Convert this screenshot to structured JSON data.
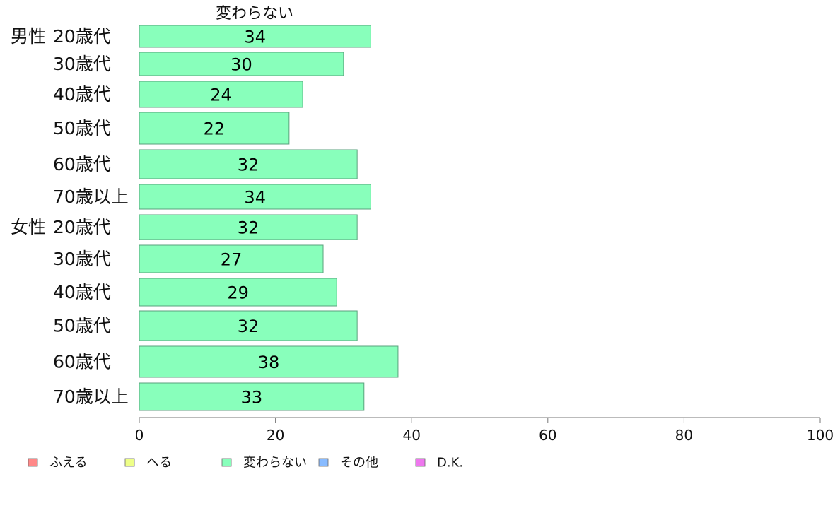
{
  "chart_data": {
    "type": "bar",
    "orientation": "horizontal",
    "series_header": "変わらない",
    "groups": [
      {
        "label": "男性",
        "rows": [
          "20歳代",
          "30歳代",
          "40歳代",
          "50歳代",
          "60歳代",
          "70歳以上"
        ]
      },
      {
        "label": "女性",
        "rows": [
          "20歳代",
          "30歳代",
          "40歳代",
          "50歳代",
          "60歳代",
          "70歳以上"
        ]
      }
    ],
    "series": [
      {
        "name": "変わらない",
        "color": "#88ffbb",
        "values": [
          34,
          30,
          24,
          22,
          32,
          34,
          32,
          27,
          29,
          32,
          38,
          33
        ]
      }
    ],
    "xlim": [
      0,
      100
    ],
    "xticks": [
      0,
      20,
      40,
      60,
      80,
      100
    ],
    "grid": false,
    "legend": {
      "placement": "bottom-left",
      "items": [
        {
          "label": "ふえる",
          "color": "#ff8888"
        },
        {
          "label": "へる",
          "color": "#eeff88"
        },
        {
          "label": "変わらない",
          "color": "#88ffbb"
        },
        {
          "label": "その他",
          "color": "#88bbff"
        },
        {
          "label": "D.K.",
          "color": "#ee77ee"
        }
      ]
    }
  }
}
